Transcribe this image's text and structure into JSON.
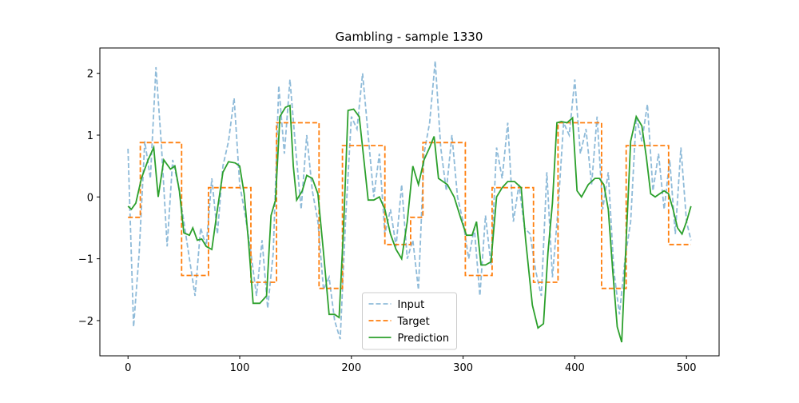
{
  "chart_data": {
    "type": "line",
    "title": "Gambling - sample 1330",
    "xlim": [
      -25.2,
      529.2
    ],
    "ylim": [
      -2.57,
      2.41
    ],
    "xticks": [
      0,
      100,
      200,
      300,
      400,
      500
    ],
    "yticks": [
      {
        "value": -2,
        "label": "−2"
      },
      {
        "value": -1,
        "label": "−1"
      },
      0,
      1,
      2
    ],
    "legend": "lower center",
    "series": [
      {
        "name": "Input",
        "color": "#1f77b4",
        "opacity": 0.5,
        "dash": "dashed",
        "x": [
          0,
          5,
          10,
          15,
          20,
          25,
          30,
          35,
          40,
          45,
          50,
          55,
          60,
          65,
          70,
          75,
          80,
          85,
          90,
          95,
          100,
          105,
          110,
          115,
          120,
          125,
          130,
          135,
          140,
          145,
          150,
          155,
          160,
          165,
          170,
          175,
          180,
          185,
          190,
          195,
          200,
          205,
          210,
          215,
          220,
          225,
          230,
          235,
          240,
          245,
          250,
          255,
          260,
          265,
          270,
          275,
          280,
          285,
          290,
          295,
          300,
          305,
          310,
          315,
          320,
          325,
          330,
          335,
          340,
          345,
          350,
          355,
          360,
          365,
          370,
          375,
          380,
          385,
          390,
          395,
          400,
          405,
          410,
          415,
          420,
          425,
          430,
          435,
          440,
          445,
          450,
          455,
          460,
          465,
          470,
          475,
          480,
          485,
          490,
          495,
          500,
          504
        ],
        "values": [
          0.78,
          -2.1,
          -0.9,
          0.9,
          0.3,
          2.1,
          0.8,
          -0.8,
          0.6,
          0.2,
          -0.4,
          -1.0,
          -1.6,
          -0.5,
          -0.8,
          0.3,
          -0.6,
          0.5,
          0.9,
          1.6,
          0.2,
          -0.3,
          -0.9,
          -1.6,
          -0.7,
          -1.8,
          -0.9,
          1.8,
          0.7,
          1.9,
          0.8,
          -0.2,
          1.0,
          0.1,
          -0.4,
          -1.5,
          -1.3,
          -2.0,
          -2.3,
          -0.3,
          1.3,
          1.1,
          2.0,
          1.0,
          0.0,
          0.7,
          -0.6,
          -0.2,
          -0.8,
          0.2,
          -1.0,
          -0.7,
          -1.5,
          0.7,
          1.2,
          2.2,
          0.8,
          0.1,
          1.0,
          0.0,
          -0.4,
          -1.0,
          -0.5,
          -1.6,
          -0.3,
          -1.1,
          0.8,
          0.3,
          1.2,
          -0.4,
          0.2,
          -0.5,
          -0.6,
          -1.2,
          -1.6,
          0.4,
          -1.3,
          -0.2,
          1.2,
          1.0,
          1.9,
          0.7,
          1.1,
          0.2,
          1.3,
          -0.2,
          0.4,
          -1.2,
          -1.9,
          -1.0,
          -0.4,
          1.3,
          0.9,
          1.5,
          0.1,
          0.7,
          -0.2,
          0.6,
          -0.6,
          0.8,
          -0.4,
          -0.7
        ]
      },
      {
        "name": "Target",
        "color": "#ff7f0e",
        "opacity": 1,
        "dash": "dashed",
        "x": [
          0,
          11,
          11,
          48,
          48,
          72,
          72,
          110,
          110,
          133,
          133,
          171,
          171,
          192,
          192,
          230,
          230,
          253,
          253,
          264,
          264,
          302,
          302,
          326,
          326,
          363,
          363,
          385,
          385,
          424,
          424,
          446,
          446,
          484,
          484,
          504
        ],
        "values": [
          -0.33,
          -0.33,
          0.88,
          0.88,
          -1.27,
          -1.27,
          0.15,
          0.15,
          -1.38,
          -1.38,
          1.2,
          1.2,
          -1.48,
          -1.48,
          0.83,
          0.83,
          -0.77,
          -0.77,
          -0.33,
          -0.33,
          0.88,
          0.88,
          -1.27,
          -1.27,
          0.15,
          0.15,
          -1.38,
          -1.38,
          1.2,
          1.2,
          -1.48,
          -1.48,
          0.83,
          0.83,
          -0.77,
          -0.77
        ]
      },
      {
        "name": "Prediction",
        "color": "#2ca02c",
        "opacity": 1,
        "dash": "solid",
        "x": [
          0,
          3,
          7,
          12,
          18,
          23,
          27,
          32,
          38,
          42,
          46,
          50,
          55,
          58,
          62,
          66,
          70,
          75,
          80,
          85,
          90,
          96,
          100,
          104,
          108,
          112,
          118,
          124,
          128,
          132,
          136,
          141,
          145,
          148,
          151,
          156,
          160,
          165,
          170,
          175,
          180,
          185,
          189,
          193,
          197,
          202,
          207,
          210,
          215,
          220,
          225,
          230,
          235,
          240,
          245,
          250,
          255,
          260,
          265,
          270,
          274,
          278,
          282,
          286,
          292,
          298,
          303,
          308,
          312,
          316,
          320,
          325,
          330,
          335,
          340,
          346,
          352,
          356,
          362,
          367,
          372,
          376,
          380,
          384,
          388,
          393,
          398,
          402,
          406,
          412,
          418,
          422,
          426,
          430,
          434,
          438,
          442,
          446,
          450,
          455,
          460,
          464,
          468,
          472,
          476,
          480,
          484,
          488,
          492,
          496,
          500,
          504
        ],
        "values": [
          -0.15,
          -0.2,
          -0.1,
          0.3,
          0.6,
          0.8,
          0.0,
          0.6,
          0.45,
          0.5,
          0.1,
          -0.58,
          -0.62,
          -0.5,
          -0.7,
          -0.68,
          -0.8,
          -0.85,
          -0.2,
          0.4,
          0.57,
          0.55,
          0.5,
          0.05,
          -0.75,
          -1.72,
          -1.72,
          -1.6,
          -0.3,
          -0.05,
          1.3,
          1.45,
          1.48,
          0.5,
          -0.05,
          0.1,
          0.35,
          0.3,
          0.05,
          -0.9,
          -1.9,
          -1.9,
          -1.95,
          -0.5,
          1.4,
          1.42,
          1.3,
          0.8,
          -0.05,
          -0.05,
          0.0,
          -0.2,
          -0.6,
          -0.85,
          -1.0,
          -0.4,
          0.5,
          0.2,
          0.6,
          0.8,
          0.98,
          0.3,
          0.25,
          0.2,
          0.0,
          -0.35,
          -0.62,
          -0.62,
          -0.4,
          -1.1,
          -1.1,
          -1.05,
          0.0,
          0.15,
          0.25,
          0.25,
          0.15,
          -0.7,
          -1.75,
          -2.12,
          -2.05,
          -0.9,
          -0.1,
          1.2,
          1.22,
          1.2,
          1.28,
          0.1,
          0.0,
          0.2,
          0.3,
          0.3,
          0.2,
          -0.2,
          -1.2,
          -2.1,
          -2.35,
          -0.7,
          0.9,
          1.3,
          1.15,
          0.65,
          0.05,
          0.0,
          0.05,
          0.1,
          0.05,
          -0.2,
          -0.5,
          -0.6,
          -0.4,
          -0.15
        ]
      }
    ]
  }
}
